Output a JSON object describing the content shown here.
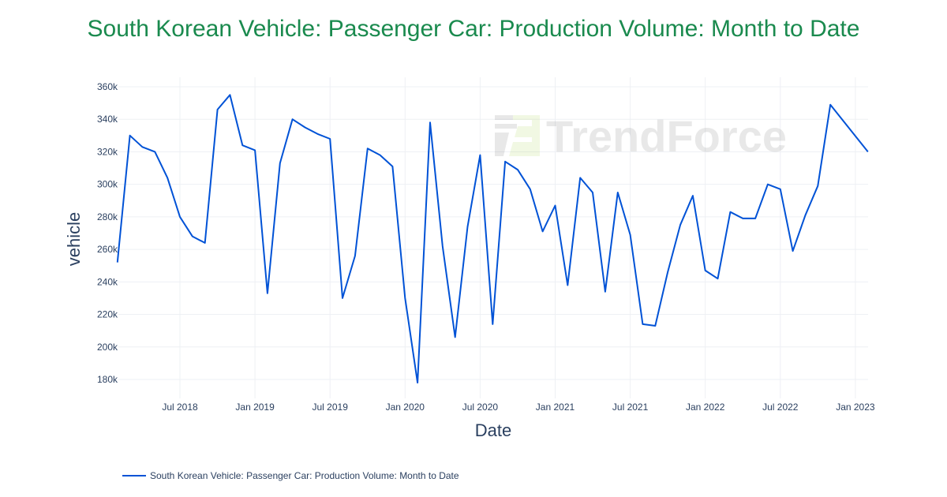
{
  "chart_data": {
    "type": "line",
    "title": "South Korean Vehicle: Passenger Car: Production Volume: Month to Date",
    "xlabel": "Date",
    "ylabel": "vehicle",
    "ylim": [
      170000,
      365000
    ],
    "yticks": [
      "180k",
      "200k",
      "220k",
      "240k",
      "260k",
      "280k",
      "300k",
      "320k",
      "340k",
      "360k"
    ],
    "ytick_values": [
      180000,
      200000,
      220000,
      240000,
      260000,
      280000,
      300000,
      320000,
      340000,
      360000
    ],
    "xticks": [
      "Jul 2018",
      "Jan 2019",
      "Jul 2019",
      "Jan 2020",
      "Jul 2020",
      "Jan 2021",
      "Jul 2021",
      "Jan 2022",
      "Jul 2022",
      "Jan 2023"
    ],
    "xtick_values": [
      "2018-07",
      "2019-01",
      "2019-07",
      "2020-01",
      "2020-07",
      "2021-01",
      "2021-07",
      "2022-01",
      "2022-07",
      "2023-01"
    ],
    "grid": true,
    "legend_position": "bottom-left",
    "watermark": "TrendForce",
    "series": [
      {
        "name": "South Korean Vehicle: Passenger Car: Production Volume: Month to Date",
        "color": "#0052d6",
        "x": [
          "2018-02",
          "2018-03",
          "2018-04",
          "2018-05",
          "2018-06",
          "2018-07",
          "2018-08",
          "2018-09",
          "2018-10",
          "2018-11",
          "2018-12",
          "2019-01",
          "2019-02",
          "2019-03",
          "2019-04",
          "2019-05",
          "2019-06",
          "2019-07",
          "2019-08",
          "2019-09",
          "2019-10",
          "2019-11",
          "2019-12",
          "2020-01",
          "2020-02",
          "2020-03",
          "2020-04",
          "2020-05",
          "2020-06",
          "2020-07",
          "2020-08",
          "2020-09",
          "2020-10",
          "2020-11",
          "2020-12",
          "2021-01",
          "2021-02",
          "2021-03",
          "2021-04",
          "2021-05",
          "2021-06",
          "2021-07",
          "2021-08",
          "2021-09",
          "2021-10",
          "2021-11",
          "2021-12",
          "2022-01",
          "2022-02",
          "2022-03",
          "2022-04",
          "2022-05",
          "2022-06",
          "2022-07",
          "2022-08",
          "2022-09",
          "2022-10",
          "2022-11",
          "2023-02"
        ],
        "y": [
          252000,
          330000,
          323000,
          320000,
          304000,
          280000,
          268000,
          264000,
          346000,
          355000,
          324000,
          321000,
          233000,
          313000,
          340000,
          335000,
          331000,
          328000,
          230000,
          256000,
          322000,
          318000,
          311000,
          230000,
          178000,
          338000,
          262000,
          206000,
          274000,
          318000,
          214000,
          314000,
          309000,
          297000,
          271000,
          287000,
          238000,
          304000,
          295000,
          234000,
          295000,
          269000,
          214000,
          213000,
          246000,
          275000,
          293000,
          247000,
          242000,
          283000,
          279000,
          279000,
          300000,
          297000,
          259000,
          281000,
          299000,
          349000,
          320000
        ]
      }
    ]
  }
}
